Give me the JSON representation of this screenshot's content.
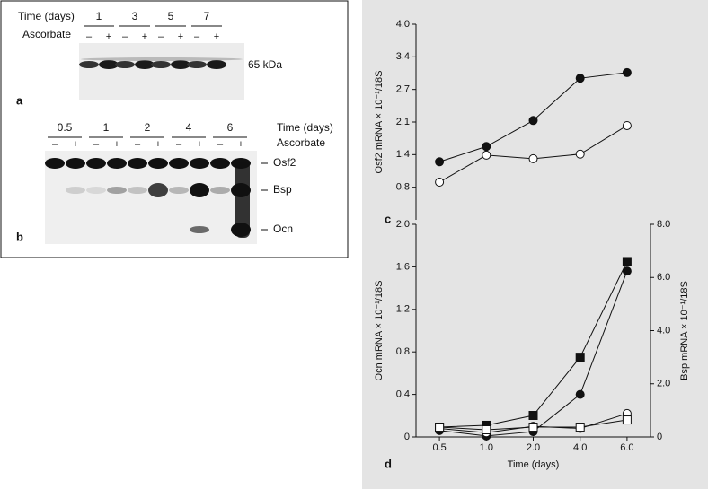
{
  "blots": {
    "panel_a": {
      "label": "a",
      "time_label": "Time (days)",
      "treatment_label": "Ascorbate",
      "days": [
        "1",
        "3",
        "5",
        "7"
      ],
      "signs": [
        "–",
        "+"
      ],
      "band_label": "65 kDa"
    },
    "panel_b": {
      "label": "b",
      "time_label": "Time (days)",
      "treatment_label": "Ascorbate",
      "days": [
        "0.5",
        "1",
        "2",
        "4",
        "6"
      ],
      "signs": [
        "–",
        "+"
      ],
      "band_labels": [
        "Osf2",
        "Bsp",
        "Ocn"
      ]
    }
  },
  "chart_data": [
    {
      "type": "line",
      "panel_label": "c",
      "y_label": "Osf2 mRNA × 10⁻¹/18S",
      "categories": [
        "0.5",
        "1.0",
        "2.0",
        "4.0",
        "6.0"
      ],
      "ylim": [
        0.16,
        4.0
      ],
      "yticks": [
        0.8,
        {
          "value": 1.44,
          "label": "1.4"
        },
        {
          "value": 2.08,
          "label": "2.1"
        },
        {
          "value": 2.72,
          "label": "2.7"
        },
        {
          "value": 3.36,
          "label": "3.4"
        },
        {
          "value": 4.0,
          "label": "4.0"
        }
      ],
      "series": [
        {
          "color": "#111111",
          "marker": "circle",
          "filled": true,
          "values": [
            1.3,
            1.6,
            2.11,
            2.94,
            3.05
          ]
        },
        {
          "color": "#111111",
          "marker": "circle",
          "filled": false,
          "values": [
            0.9,
            1.43,
            1.36,
            1.45,
            2.01
          ]
        }
      ]
    },
    {
      "type": "line",
      "panel_label": "d",
      "x_label": "Time (days)",
      "y_label": "Ocn mRNA × 10⁻¹/18S",
      "y2_label": "Bsp mRNA × 10⁻¹/18S",
      "categories": [
        "0.5",
        "1.0",
        "2.0",
        "4.0",
        "6.0"
      ],
      "ylim": [
        0,
        2.0
      ],
      "yticks": [
        0,
        0.4,
        0.8,
        1.2,
        1.6,
        {
          "value": 2.0,
          "label": "2.0"
        }
      ],
      "y2lim": [
        0,
        8.0
      ],
      "y2ticks": [
        0,
        {
          "value": 2.0,
          "label": "2.0"
        },
        {
          "value": 4.0,
          "label": "4.0"
        },
        {
          "value": 6.0,
          "label": "6.0"
        },
        {
          "value": 8.0,
          "label": "8.0"
        }
      ],
      "series": [
        {
          "color": "#111111",
          "marker": "circle",
          "filled": true,
          "values": [
            0.06,
            0.01,
            0.05,
            0.4,
            1.56
          ]
        },
        {
          "color": "#111111",
          "marker": "circle",
          "filled": false,
          "values": [
            0.08,
            0.04,
            0.1,
            0.08,
            0.22
          ]
        },
        {
          "color": "#111111",
          "marker": "square",
          "filled": true,
          "axis": "y2",
          "values": [
            0.37,
            0.44,
            0.81,
            3.0,
            6.6
          ]
        },
        {
          "color": "#111111",
          "marker": "square",
          "filled": false,
          "axis": "y2",
          "values": [
            0.37,
            0.27,
            0.37,
            0.37,
            0.64
          ]
        }
      ]
    }
  ]
}
